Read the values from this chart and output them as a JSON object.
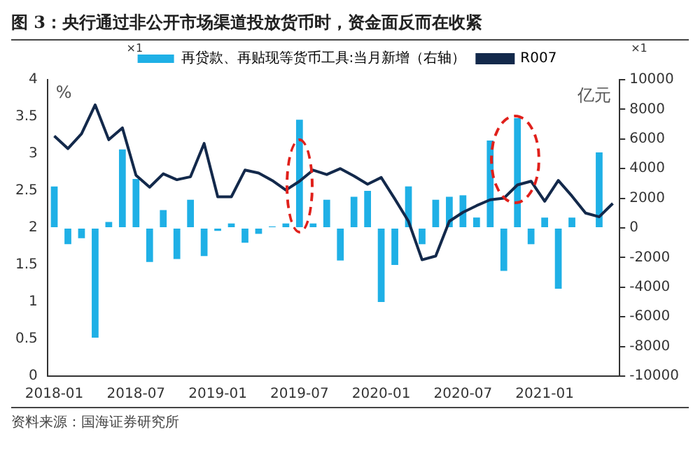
{
  "chart_data": {
    "type": "bar",
    "title": "图 3：央行通过非公开市场渠道投放货币时，资金面反而在收紧",
    "categories": [
      "2018-01",
      null,
      null,
      null,
      null,
      null,
      "2018-07",
      null,
      null,
      null,
      null,
      null,
      "2019-01",
      null,
      null,
      null,
      null,
      null,
      "2019-07",
      null,
      null,
      null,
      null,
      null,
      "2020-01",
      null,
      null,
      null,
      null,
      null,
      "2020-07",
      null,
      null,
      null,
      null,
      null,
      "2021-01",
      null,
      null,
      null,
      null,
      null
    ],
    "series": [
      {
        "name": "再贷款、再贴现等货币工具:当月新增（右轴）",
        "axis": "y2",
        "color": "#1fb0e6",
        "values": [
          2800,
          -1100,
          -700,
          -7400,
          400,
          5300,
          3300,
          -2300,
          1200,
          -2100,
          1900,
          -1900,
          -200,
          300,
          -1000,
          -400,
          100,
          300,
          7300,
          300,
          1900,
          -2200,
          2100,
          2500,
          -5000,
          -2500,
          2800,
          -1100,
          1900,
          2100,
          2200,
          700,
          5900,
          -2900,
          7400,
          -1100,
          700,
          -4100,
          700,
          null,
          5100,
          null
        ]
      },
      {
        "name": "R007",
        "type": "line",
        "axis": "y",
        "color": "#13294b",
        "values": [
          3.24,
          3.07,
          3.27,
          3.66,
          3.19,
          3.35,
          2.71,
          2.55,
          2.73,
          2.65,
          2.69,
          3.14,
          2.42,
          2.42,
          2.78,
          2.74,
          2.64,
          2.51,
          2.63,
          2.78,
          2.72,
          2.8,
          2.7,
          2.59,
          2.68,
          2.39,
          2.09,
          1.57,
          1.62,
          2.09,
          2.21,
          2.3,
          2.38,
          2.4,
          2.58,
          2.63,
          2.36,
          2.64,
          2.43,
          2.2,
          2.15,
          2.33
        ]
      }
    ],
    "ylabel": "%",
    "y2label": "亿元",
    "ylim": [
      0,
      4
    ],
    "yticks": [
      0,
      0.5,
      1,
      1.5,
      2,
      2.5,
      3,
      3.5,
      4
    ],
    "y2lim": [
      -10000,
      10000
    ],
    "y2ticks": [
      -10000,
      -8000,
      -6000,
      -4000,
      -2000,
      0,
      2000,
      4000,
      6000,
      8000,
      10000
    ],
    "grid": false,
    "legend": "top",
    "marker": "none",
    "line_style": "solid",
    "annotations": [
      "×1",
      "×1",
      "资料来源：国海证券研究所"
    ]
  }
}
